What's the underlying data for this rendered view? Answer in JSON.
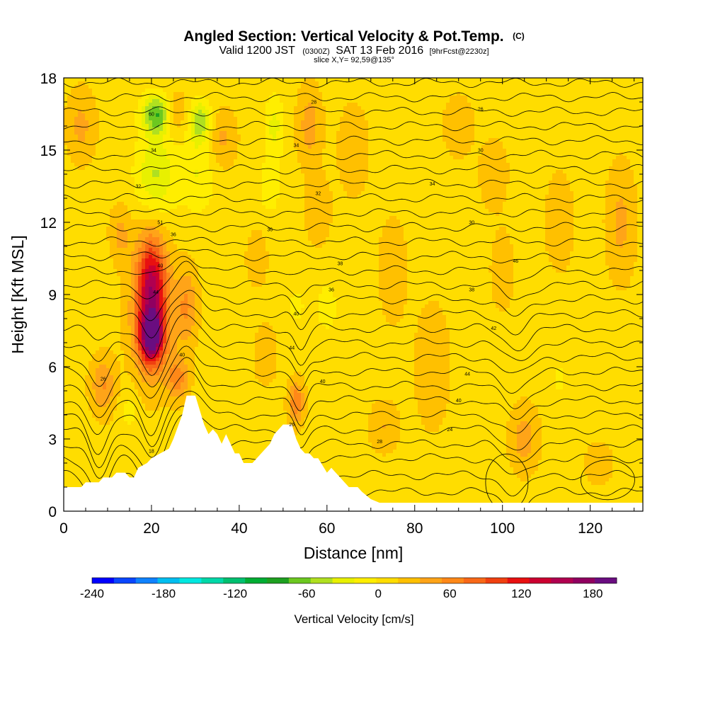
{
  "title": {
    "main": "Angled Section: Vertical Velocity & Pot.Temp.",
    "unit": "(C)",
    "valid_prefix": "Valid 1200 JST",
    "valid_z": "(0300Z)",
    "valid_date": "SAT 13 Feb 2016",
    "forecast": "[9hrFcst@2230z]",
    "slice": "slice X,Y= 92,59@135°"
  },
  "chart_data": {
    "type": "heatmap",
    "xlabel": "Distance [nm]",
    "ylabel": "Height [Kft MSL]",
    "xlim": [
      0,
      132
    ],
    "ylim": [
      0,
      18
    ],
    "x_ticks": [
      0,
      20,
      40,
      60,
      80,
      100,
      120
    ],
    "y_ticks": [
      0,
      3,
      6,
      9,
      12,
      15,
      18
    ],
    "colorbar": {
      "title": "Vertical Velocity [cm/s]",
      "range": [
        -240,
        200
      ],
      "tick_values": [
        -240,
        -180,
        -120,
        -60,
        0,
        60,
        120,
        180
      ],
      "colors": [
        "#0000ff",
        "#0a46ff",
        "#0f82ff",
        "#00bef0",
        "#00e8e0",
        "#00d8a8",
        "#00c070",
        "#00ad33",
        "#1ea020",
        "#6cc820",
        "#b0e020",
        "#e8f000",
        "#ffee00",
        "#ffdd00",
        "#ffc000",
        "#ffa418",
        "#ff8818",
        "#f86818",
        "#f04010",
        "#e81010",
        "#cc0030",
        "#b00050",
        "#900060",
        "#6a0d80"
      ]
    },
    "background_velocity": 10,
    "velocity_features": [
      {
        "x": 20,
        "y": 7.2,
        "w": 32,
        "h": 68,
        "v": 140
      },
      {
        "x": 20,
        "y": 9.5,
        "w": 40,
        "h": 140,
        "v": 100
      },
      {
        "x": 20,
        "y": 8,
        "w": 55,
        "h": 170,
        "v": 70
      },
      {
        "x": 21.5,
        "y": 16.5,
        "w": 42,
        "h": 55,
        "v": -90
      },
      {
        "x": 21,
        "y": 14,
        "w": 55,
        "h": 120,
        "v": -50
      },
      {
        "x": 31,
        "y": 16.2,
        "w": 34,
        "h": 60,
        "v": -60
      },
      {
        "x": 30.5,
        "y": 14,
        "w": 48,
        "h": 110,
        "v": -30
      },
      {
        "x": 28,
        "y": 8.5,
        "w": 30,
        "h": 110,
        "v": 45
      },
      {
        "x": 26,
        "y": 5.5,
        "w": 30,
        "h": 60,
        "v": 50
      },
      {
        "x": 9,
        "y": 5.2,
        "w": 35,
        "h": 80,
        "v": 45
      },
      {
        "x": 15,
        "y": 4.2,
        "w": 25,
        "h": 60,
        "v": -20
      },
      {
        "x": 25,
        "y": 16.5,
        "w": 40,
        "h": 60,
        "v": 40
      },
      {
        "x": 36,
        "y": 15.5,
        "w": 40,
        "h": 80,
        "v": 30
      },
      {
        "x": 4,
        "y": 16,
        "w": 40,
        "h": 100,
        "v": 30
      },
      {
        "x": 13,
        "y": 11.5,
        "w": 30,
        "h": 80,
        "v": 30
      },
      {
        "x": 48,
        "y": 16,
        "w": 28,
        "h": 90,
        "v": -35
      },
      {
        "x": 47,
        "y": 13.5,
        "w": 30,
        "h": 80,
        "v": -25
      },
      {
        "x": 56,
        "y": 16,
        "w": 34,
        "h": 110,
        "v": 35
      },
      {
        "x": 53,
        "y": 4.5,
        "w": 22,
        "h": 60,
        "v": 60
      },
      {
        "x": 53,
        "y": 8.5,
        "w": 25,
        "h": 50,
        "v": -20
      },
      {
        "x": 60,
        "y": 8.5,
        "w": 28,
        "h": 70,
        "v": -25
      },
      {
        "x": 58,
        "y": 12.5,
        "w": 34,
        "h": 90,
        "v": 25
      },
      {
        "x": 46,
        "y": 6.5,
        "w": 30,
        "h": 80,
        "v": 25
      },
      {
        "x": 44,
        "y": 10.5,
        "w": 30,
        "h": 80,
        "v": 20
      },
      {
        "x": 66,
        "y": 15,
        "w": 40,
        "h": 120,
        "v": 25
      },
      {
        "x": 75,
        "y": 10,
        "w": 40,
        "h": 150,
        "v": 20
      },
      {
        "x": 73,
        "y": 3.5,
        "w": 40,
        "h": 70,
        "v": 25
      },
      {
        "x": 84,
        "y": 6,
        "w": 50,
        "h": 180,
        "v": 20
      },
      {
        "x": 90,
        "y": 16,
        "w": 40,
        "h": 80,
        "v": 25
      },
      {
        "x": 98,
        "y": 14,
        "w": 40,
        "h": 100,
        "v": 20
      },
      {
        "x": 105,
        "y": 3,
        "w": 40,
        "h": 90,
        "v": 35
      },
      {
        "x": 100,
        "y": 10,
        "w": 30,
        "h": 100,
        "v": 25
      },
      {
        "x": 113,
        "y": 5.5,
        "w": 18,
        "h": 50,
        "v": -20
      },
      {
        "x": 113,
        "y": 12,
        "w": 40,
        "h": 140,
        "v": 20
      },
      {
        "x": 127,
        "y": 12,
        "w": 40,
        "h": 160,
        "v": 30
      },
      {
        "x": 122,
        "y": 2,
        "w": 40,
        "h": 60,
        "v": 20
      }
    ],
    "theta_contours": {
      "levels": [
        8,
        10,
        12,
        14,
        16,
        18,
        20,
        22,
        24,
        26,
        28,
        30,
        32,
        34,
        36,
        38,
        40,
        42,
        44,
        46,
        48,
        50,
        52,
        54,
        56,
        58,
        60,
        62,
        64
      ],
      "base_heights": [
        0.8,
        1.5,
        2.2,
        2.8,
        3.4,
        4.0,
        4.6,
        5.2,
        5.8,
        6.4,
        7.0,
        7.6,
        8.2,
        8.8,
        9.4,
        10.0,
        10.6,
        11.2,
        11.8,
        12.4,
        13.0,
        13.6,
        14.2,
        14.8,
        15.4,
        16.0,
        16.6,
        17.2,
        17.8
      ],
      "perturbations": [
        {
          "x": 8,
          "w": 3,
          "amp": -1.5,
          "ymax": 8
        },
        {
          "x": 20,
          "w": 3,
          "amp": -1.3,
          "ymax": 10
        },
        {
          "x": 28,
          "w": 4,
          "amp": 1.1,
          "ymax": 11
        },
        {
          "x": 54,
          "w": 2,
          "amp": -0.9,
          "ymax": 10
        },
        {
          "x": 103,
          "w": 4,
          "amp": -0.8,
          "ymax": 11
        }
      ],
      "labels": [
        {
          "x": 9,
          "y": 5.5,
          "text": "26"
        },
        {
          "x": 20,
          "y": 2.5,
          "text": "18"
        },
        {
          "x": 20,
          "y": 16.5,
          "text": "60"
        },
        {
          "x": 20.5,
          "y": 15,
          "text": "34"
        },
        {
          "x": 17,
          "y": 13.5,
          "text": "32"
        },
        {
          "x": 22,
          "y": 12,
          "text": "51"
        },
        {
          "x": 25,
          "y": 11.5,
          "text": "36"
        },
        {
          "x": 22,
          "y": 10.2,
          "text": "40"
        },
        {
          "x": 21,
          "y": 9.1,
          "text": "44"
        },
        {
          "x": 27,
          "y": 6.5,
          "text": "40"
        },
        {
          "x": 47,
          "y": 11.7,
          "text": "36"
        },
        {
          "x": 53,
          "y": 15.2,
          "text": "34"
        },
        {
          "x": 57,
          "y": 17,
          "text": "28"
        },
        {
          "x": 58,
          "y": 13.2,
          "text": "32"
        },
        {
          "x": 63,
          "y": 10.3,
          "text": "38"
        },
        {
          "x": 61,
          "y": 9.2,
          "text": "36"
        },
        {
          "x": 53,
          "y": 8.2,
          "text": "40"
        },
        {
          "x": 52,
          "y": 6.8,
          "text": "44"
        },
        {
          "x": 59,
          "y": 5.4,
          "text": "40"
        },
        {
          "x": 52,
          "y": 3.6,
          "text": "26"
        },
        {
          "x": 72,
          "y": 2.9,
          "text": "28"
        },
        {
          "x": 88,
          "y": 3.4,
          "text": "24"
        },
        {
          "x": 90,
          "y": 4.6,
          "text": "40"
        },
        {
          "x": 92,
          "y": 5.7,
          "text": "44"
        },
        {
          "x": 98,
          "y": 7.6,
          "text": "42"
        },
        {
          "x": 93,
          "y": 9.2,
          "text": "38"
        },
        {
          "x": 93,
          "y": 12,
          "text": "30"
        },
        {
          "x": 103,
          "y": 10.4,
          "text": "46"
        },
        {
          "x": 84,
          "y": 13.6,
          "text": "34"
        },
        {
          "x": 95,
          "y": 15,
          "text": "30"
        },
        {
          "x": 95,
          "y": 16.7,
          "text": "26"
        }
      ]
    },
    "terrain": [
      [
        0,
        1.0
      ],
      [
        4,
        1.0
      ],
      [
        5,
        1.2
      ],
      [
        8,
        1.2
      ],
      [
        9,
        1.4
      ],
      [
        11,
        1.4
      ],
      [
        12,
        1.6
      ],
      [
        14,
        1.6
      ],
      [
        15,
        1.4
      ],
      [
        16,
        1.4
      ],
      [
        17,
        1.8
      ],
      [
        19,
        2.0
      ],
      [
        20,
        2.2
      ],
      [
        22,
        2.4
      ],
      [
        24,
        2.6
      ],
      [
        25,
        3.0
      ],
      [
        26,
        3.5
      ],
      [
        27,
        4.0
      ],
      [
        28,
        4.8
      ],
      [
        30,
        4.8
      ],
      [
        31,
        4.2
      ],
      [
        32,
        3.6
      ],
      [
        33,
        3.2
      ],
      [
        34,
        3.4
      ],
      [
        35,
        3.2
      ],
      [
        36,
        2.8
      ],
      [
        37,
        3.2
      ],
      [
        38,
        2.8
      ],
      [
        39,
        2.4
      ],
      [
        40,
        2.4
      ],
      [
        41,
        2.0
      ],
      [
        43,
        2.0
      ],
      [
        44,
        2.2
      ],
      [
        45,
        2.4
      ],
      [
        46,
        2.6
      ],
      [
        47,
        2.8
      ],
      [
        48,
        3.2
      ],
      [
        49,
        3.4
      ],
      [
        50,
        3.6
      ],
      [
        52,
        3.6
      ],
      [
        53,
        3.0
      ],
      [
        54,
        2.6
      ],
      [
        55,
        2.4
      ],
      [
        56,
        2.4
      ],
      [
        57,
        2.2
      ],
      [
        58,
        2.2
      ],
      [
        59,
        1.9
      ],
      [
        60,
        1.6
      ],
      [
        61,
        1.8
      ],
      [
        62,
        1.6
      ],
      [
        63,
        1.4
      ],
      [
        64,
        1.2
      ],
      [
        65,
        1.0
      ],
      [
        67,
        1.0
      ],
      [
        68,
        0.8
      ],
      [
        70,
        0.5
      ],
      [
        72,
        0.35
      ],
      [
        132,
        0.35
      ]
    ]
  }
}
